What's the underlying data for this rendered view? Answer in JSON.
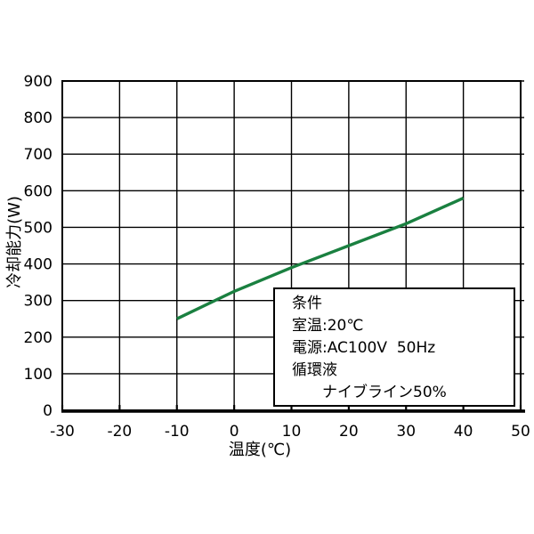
{
  "page": {
    "background_color": "#ffffff",
    "text_color": "#000000"
  },
  "chart_data": {
    "type": "line",
    "title": "",
    "xlabel": "温度(℃)",
    "ylabel": "冷却能力(W)",
    "xlim": [
      -30,
      50
    ],
    "ylim": [
      0,
      900
    ],
    "xticks": [
      -30,
      -20,
      -10,
      0,
      10,
      20,
      30,
      40,
      50
    ],
    "yticks": [
      0,
      100,
      200,
      300,
      400,
      500,
      600,
      700,
      800,
      900
    ],
    "grid": true,
    "grid_color": "#000000",
    "axis_color": "#000000",
    "legend": "none",
    "series": [
      {
        "name": "冷却能力",
        "color": "#1a8040",
        "x": [
          -10,
          0,
          10,
          20,
          30,
          40
        ],
        "y": [
          250,
          325,
          390,
          450,
          510,
          580
        ]
      }
    ],
    "annotation": {
      "lines": [
        "条件",
        "室温:20℃",
        "電源:AC100V  50Hz",
        "循環液",
        "　　ナイブライン50%"
      ]
    }
  }
}
